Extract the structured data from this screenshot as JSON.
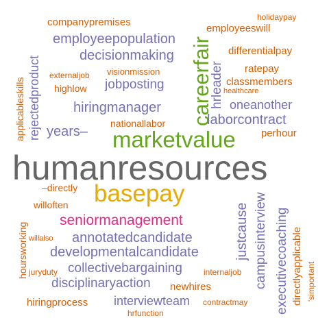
{
  "words": {
    "humanresources": "humanresources",
    "basepay": "basepay",
    "marketvalue": "marketvalue",
    "careerfair": "careerfair",
    "seniormanagement": "seniormanagement",
    "annotatedcandidate": "annotatedcandidate",
    "developmentalcandidate": "developmentalcandidate",
    "collectivebargaining": "collectivebargaining",
    "disciplinaryaction": "disciplinaryaction",
    "interviewteam": "interviewteam",
    "hiringmanager": "hiringmanager",
    "decisionmaking": "decisionmaking",
    "employeepopulation": "employeepopulation",
    "jobposting": "jobposting",
    "laborcontract": "laborcontract",
    "oneanother": "oneanother",
    "justcause": "justcause",
    "campusinterview": "campusinterview",
    "executivecoaching": "executivecoaching",
    "directlyapplicable": "directlyapplicable",
    "years": "years–",
    "companypremises": "companypremises",
    "employeeswill": "employeeswill",
    "differentialpay": "differentialpay",
    "ratepay": "ratepay",
    "classmembers": "classmembers",
    "nationallabor": "nationallabor",
    "perhour": "perhour",
    "visionmission": "visionmission",
    "highlow": "highlow",
    "externaljob": "externaljob",
    "healthcare": "healthcare",
    "hrleader": "hrleader",
    "holidaypay": "holidaypay",
    "directly": "–directly",
    "willoften": "willoften",
    "willalso": "willalso",
    "juryduty": "juryduty",
    "internaljob": "internaljob",
    "newhires": "newhires",
    "hiringprocess": "hiringprocess",
    "contractmay": "contractmay",
    "hrfunction": "hrfunction",
    "applicableskills": "applicableskills",
    "rejectedproduct": "rejectedproduct",
    "hoursworking": "hoursworking",
    "simportant": "'simportant"
  },
  "colors": {
    "purple": "#7570b3",
    "orange": "#d95f02",
    "gray": "#666666",
    "green": "#66a61e",
    "gold": "#e6ab02",
    "pink": "#e7298a"
  }
}
